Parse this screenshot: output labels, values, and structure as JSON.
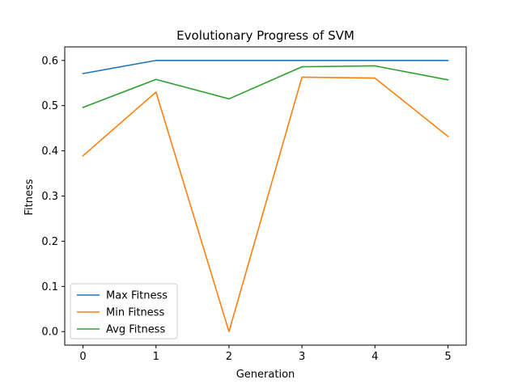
{
  "chart_data": {
    "type": "line",
    "title": "Evolutionary Progress of SVM",
    "xlabel": "Generation",
    "ylabel": "Fitness",
    "x": [
      0,
      1,
      2,
      3,
      4,
      5
    ],
    "xlim": [
      -0.25,
      5.25
    ],
    "ylim": [
      -0.03,
      0.63
    ],
    "xticks": [
      0,
      1,
      2,
      3,
      4,
      5
    ],
    "yticks": [
      0.0,
      0.1,
      0.2,
      0.3,
      0.4,
      0.5,
      0.6
    ],
    "ytick_labels": [
      "0.0",
      "0.1",
      "0.2",
      "0.3",
      "0.4",
      "0.5",
      "0.6"
    ],
    "grid": false,
    "legend": "lower-left",
    "series": [
      {
        "name": "Max Fitness",
        "color": "#1f77b4",
        "values": [
          0.571,
          0.6,
          0.6,
          0.6,
          0.6,
          0.6
        ]
      },
      {
        "name": "Min Fitness",
        "color": "#ff7f0e",
        "values": [
          0.389,
          0.53,
          0.0,
          0.563,
          0.561,
          0.432
        ]
      },
      {
        "name": "Avg Fitness",
        "color": "#2ca02c",
        "values": [
          0.496,
          0.558,
          0.515,
          0.586,
          0.588,
          0.557
        ]
      }
    ]
  }
}
